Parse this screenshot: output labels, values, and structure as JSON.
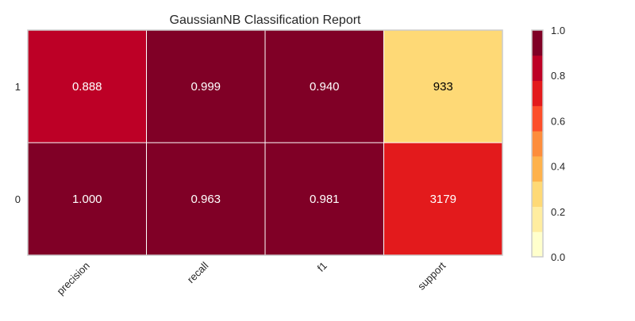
{
  "chart_data": {
    "type": "heatmap",
    "title": "GaussianNB Classification Report",
    "xlabel": "",
    "ylabel": "",
    "x_categories": [
      "precision",
      "recall",
      "f1",
      "support"
    ],
    "y_categories": [
      "1",
      "0"
    ],
    "cells": [
      [
        "0.888",
        "0.999",
        "0.940",
        "933"
      ],
      [
        "1.000",
        "0.963",
        "0.981",
        "3179"
      ]
    ],
    "color_values": [
      [
        0.888,
        0.999,
        0.94,
        0.294
      ],
      [
        1.0,
        0.963,
        0.981,
        0.765
      ]
    ],
    "text_colors": [
      [
        "#ffffff",
        "#ffffff",
        "#ffffff",
        "#000000"
      ],
      [
        "#ffffff",
        "#ffffff",
        "#ffffff",
        "#ffffff"
      ]
    ],
    "colorbar": {
      "min": 0.0,
      "max": 1.0,
      "tick_labels": [
        "0.0",
        "0.2",
        "0.4",
        "0.6",
        "0.8",
        "1.0"
      ],
      "levels": [
        "#ffffcc",
        "#ffeda0",
        "#fed976",
        "#feb24c",
        "#fd8d3c",
        "#fc4e2a",
        "#e31a1c",
        "#bd0026",
        "#800026"
      ]
    },
    "colors": {
      "cell_border": "#ffffff",
      "frame": "#cccccc",
      "text": "#262626"
    }
  }
}
